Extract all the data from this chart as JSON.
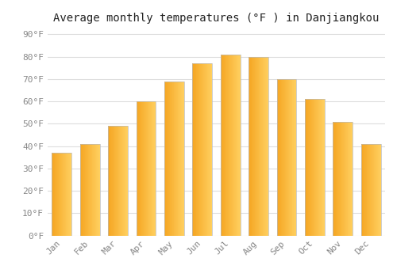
{
  "title": "Average monthly temperatures (°F ) in Danjiangkou",
  "months": [
    "Jan",
    "Feb",
    "Mar",
    "Apr",
    "May",
    "Jun",
    "Jul",
    "Aug",
    "Sep",
    "Oct",
    "Nov",
    "Dec"
  ],
  "values": [
    37,
    41,
    49,
    60,
    69,
    77,
    81,
    80,
    70,
    61,
    51,
    41
  ],
  "bar_color_left": "#F5A623",
  "bar_color_right": "#FFD060",
  "bar_edge_color": "#BBBBBB",
  "ylim": [
    0,
    93
  ],
  "yticks": [
    0,
    10,
    20,
    30,
    40,
    50,
    60,
    70,
    80,
    90
  ],
  "ytick_labels": [
    "0°F",
    "10°F",
    "20°F",
    "30°F",
    "40°F",
    "50°F",
    "60°F",
    "70°F",
    "80°F",
    "90°F"
  ],
  "background_color": "#ffffff",
  "grid_color": "#dddddd",
  "title_fontsize": 10,
  "tick_fontsize": 8,
  "tick_color": "#888888",
  "bar_width": 0.7
}
